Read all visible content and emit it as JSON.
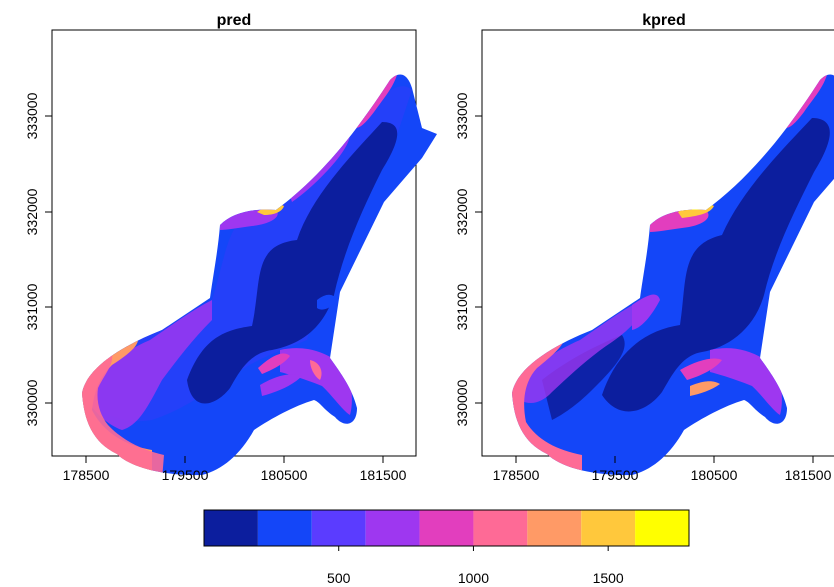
{
  "chart_data": [
    {
      "type": "heatmap",
      "title": "pred",
      "xlabel": "",
      "ylabel": "",
      "x_ticks": [
        178500,
        179500,
        180500,
        181500
      ],
      "y_ticks": [
        330000,
        331000,
        332000,
        333000
      ],
      "x_tick_labels": [
        "178500",
        "179500",
        "180500",
        "181500"
      ],
      "y_tick_labels": [
        "330000",
        "331000",
        "332000",
        "333000"
      ],
      "xlim": [
        178050,
        181650
      ],
      "ylim": [
        329550,
        333950
      ],
      "grid": false
    },
    {
      "type": "heatmap",
      "title": "kpred",
      "xlabel": "",
      "ylabel": "",
      "x_ticks": [
        178500,
        179500,
        180500,
        181500
      ],
      "y_ticks": [
        330000,
        331000,
        332000,
        333000
      ],
      "x_tick_labels": [
        "178500",
        "179500",
        "180500",
        "181500"
      ],
      "y_tick_labels": [
        "330000",
        "331000",
        "332000",
        "333000"
      ],
      "xlim": [
        178050,
        181650
      ],
      "ylim": [
        329550,
        333950
      ],
      "grid": false
    }
  ],
  "legend": {
    "position": "bottom",
    "breaks": [
      0,
      200,
      400,
      600,
      800,
      1000,
      1200,
      1400,
      1600,
      1800
    ],
    "colors": [
      "#0c1e9e",
      "#1446f8",
      "#5b3cff",
      "#9e37f0",
      "#e23ebe",
      "#fe6a96",
      "#ff9a66",
      "#ffc83c",
      "#ffff00"
    ],
    "tick_values": [
      500,
      1000,
      1500
    ],
    "tick_labels": [
      "500",
      "1000",
      "1500"
    ]
  }
}
